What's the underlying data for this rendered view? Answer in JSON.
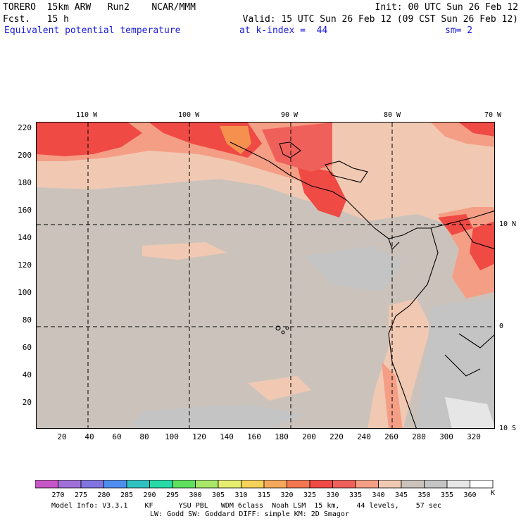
{
  "header": {
    "line1_left": "TORERO  15km ARW   Run2    NCAR/MMM",
    "line1_right": "Init: 00 UTC Sun 26 Feb 12",
    "line2_left": "Fcst.   15 h",
    "line2_right": "Valid: 15 UTC Sun 26 Feb 12 (09 CST Sun 26 Feb 12)",
    "field": "Equivalent potential temperature",
    "kindex": "at k-index =  44",
    "smoothing": "sm= 2"
  },
  "map": {
    "lon_labels": [
      "110 W",
      "100 W",
      "90 W",
      "80 W",
      "70 W"
    ],
    "lat_labels": [
      "10 N",
      "0",
      "10 S"
    ],
    "y_ticks": [
      "220",
      "200",
      "180",
      "160",
      "140",
      "120",
      "100",
      "80",
      "60",
      "40",
      "20"
    ],
    "x_ticks": [
      "20",
      "40",
      "60",
      "80",
      "100",
      "120",
      "140",
      "160",
      "180",
      "200",
      "220",
      "240",
      "260",
      "280",
      "300",
      "320"
    ]
  },
  "colorbar": {
    "labels": [
      "270",
      "275",
      "280",
      "285",
      "290",
      "295",
      "300",
      "305",
      "310",
      "315",
      "320",
      "325",
      "330",
      "335",
      "340",
      "345",
      "350",
      "355",
      "360"
    ],
    "unit": "K",
    "colors": [
      "#c656c6",
      "#a070d8",
      "#8074e0",
      "#4f8ef0",
      "#2fc1c1",
      "#27d9a6",
      "#5ee05e",
      "#a8e66a",
      "#e6ee70",
      "#f6d25a",
      "#f6a85a",
      "#f27650",
      "#ef4a44",
      "#f0605a",
      "#f59e86",
      "#f1c9b3",
      "#cbc3bb",
      "#c4c4c4",
      "#e6e6e6",
      "#ffffff"
    ]
  },
  "footer": {
    "line1": "Model Info: V3.3.1    KF      YSU PBL   WDM 6class  Noah LSM  15 km,    44 levels,    57 sec",
    "line2": "LW: Godd SW: Goddard DIFF: simple KM: 2D Smagor"
  }
}
